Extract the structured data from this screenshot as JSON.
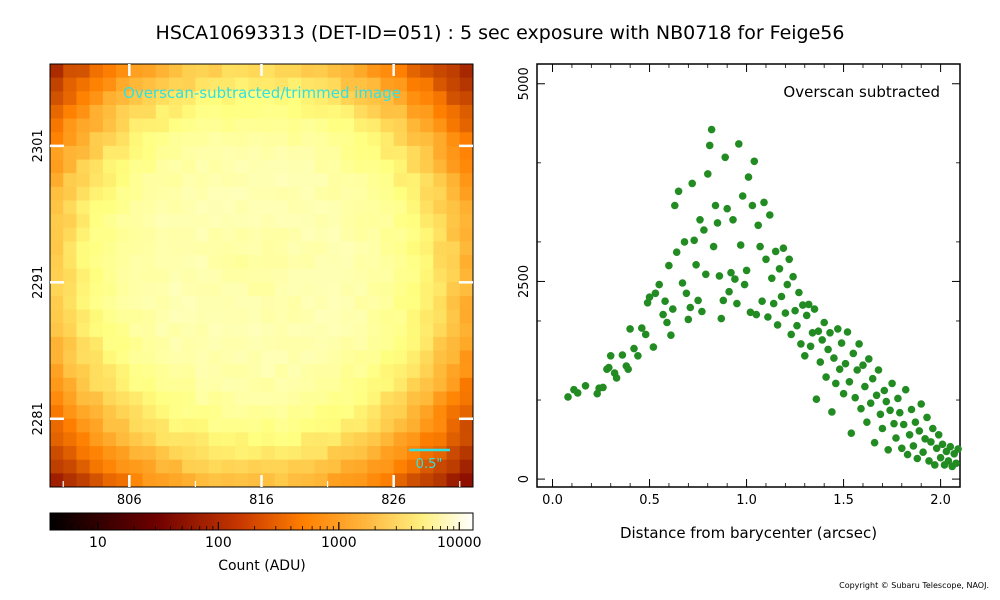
{
  "title": "HSCA10693313 (DET-ID=051) :  5 sec exposure with NB0718 for Feige56",
  "copyright": "Copyright © Subaru Telescope, NAOJ.",
  "colors": {
    "scatter_points": "#228B22",
    "image_overlay_text": "#33e0e0",
    "axes": "#000000"
  },
  "chart_data": [
    {
      "type": "heatmap",
      "title": "Overscan-subtracted/trimmed image",
      "colormap": "afmhot",
      "color_scale": "log",
      "x_ticks": [
        "806",
        "816",
        "826"
      ],
      "y_ticks": [
        "2301",
        "2291",
        "2281"
      ],
      "scalebar_label": "0.5\"",
      "x_range": [
        800,
        832
      ],
      "y_range": [
        2276,
        2307
      ],
      "source": {
        "x": 815.5,
        "y": 2292,
        "peak_counts": 4400,
        "ring_radius_px": 7,
        "sky_counts": 8
      },
      "colorbar": {
        "label": "Count (ADU)",
        "scale": "log",
        "range": [
          4,
          13000
        ],
        "ticks": [
          "10",
          "100",
          "1000",
          "10000"
        ]
      }
    },
    {
      "type": "scatter",
      "annotation": "Overscan subtracted",
      "xlabel": "Distance from barycenter (arcsec)",
      "ylabel": "",
      "xlim": [
        -0.08,
        2.1
      ],
      "ylim": [
        -100,
        5250
      ],
      "x_ticks": [
        "0.0",
        "0.5",
        "1.0",
        "1.5",
        "2.0"
      ],
      "y_ticks": [
        "0",
        "2500",
        "5000"
      ],
      "points": [
        [
          0.08,
          1040
        ],
        [
          0.11,
          1130
        ],
        [
          0.13,
          1090
        ],
        [
          0.17,
          1180
        ],
        [
          0.23,
          1080
        ],
        [
          0.24,
          1150
        ],
        [
          0.26,
          1160
        ],
        [
          0.28,
          1390
        ],
        [
          0.29,
          1410
        ],
        [
          0.3,
          1560
        ],
        [
          0.32,
          1340
        ],
        [
          0.33,
          1280
        ],
        [
          0.36,
          1570
        ],
        [
          0.38,
          1430
        ],
        [
          0.39,
          1390
        ],
        [
          0.4,
          1900
        ],
        [
          0.42,
          1650
        ],
        [
          0.44,
          1560
        ],
        [
          0.46,
          1910
        ],
        [
          0.48,
          1830
        ],
        [
          0.49,
          2230
        ],
        [
          0.5,
          2300
        ],
        [
          0.52,
          1670
        ],
        [
          0.53,
          2350
        ],
        [
          0.55,
          2460
        ],
        [
          0.57,
          2080
        ],
        [
          0.58,
          2250
        ],
        [
          0.59,
          1980
        ],
        [
          0.6,
          2700
        ],
        [
          0.61,
          1820
        ],
        [
          0.62,
          2150
        ],
        [
          0.63,
          3460
        ],
        [
          0.64,
          2870
        ],
        [
          0.65,
          3640
        ],
        [
          0.67,
          2480
        ],
        [
          0.68,
          3000
        ],
        [
          0.69,
          2350
        ],
        [
          0.7,
          2020
        ],
        [
          0.71,
          2170
        ],
        [
          0.72,
          3740
        ],
        [
          0.73,
          3020
        ],
        [
          0.74,
          2710
        ],
        [
          0.75,
          2260
        ],
        [
          0.76,
          3280
        ],
        [
          0.77,
          2120
        ],
        [
          0.78,
          3150
        ],
        [
          0.79,
          2590
        ],
        [
          0.8,
          3860
        ],
        [
          0.81,
          4220
        ],
        [
          0.82,
          4420
        ],
        [
          0.83,
          2940
        ],
        [
          0.84,
          3460
        ],
        [
          0.85,
          3240
        ],
        [
          0.86,
          2570
        ],
        [
          0.87,
          2030
        ],
        [
          0.88,
          2260
        ],
        [
          0.89,
          4070
        ],
        [
          0.9,
          3420
        ],
        [
          0.91,
          2370
        ],
        [
          0.92,
          2610
        ],
        [
          0.93,
          3280
        ],
        [
          0.94,
          2530
        ],
        [
          0.95,
          2220
        ],
        [
          0.96,
          4240
        ],
        [
          0.97,
          2960
        ],
        [
          0.98,
          3580
        ],
        [
          0.99,
          2460
        ],
        [
          1.0,
          2640
        ],
        [
          1.01,
          3820
        ],
        [
          1.02,
          2110
        ],
        [
          1.03,
          3460
        ],
        [
          1.04,
          4020
        ],
        [
          1.05,
          2080
        ],
        [
          1.06,
          3210
        ],
        [
          1.07,
          2940
        ],
        [
          1.08,
          2250
        ],
        [
          1.09,
          3500
        ],
        [
          1.1,
          2780
        ],
        [
          1.11,
          2050
        ],
        [
          1.12,
          3340
        ],
        [
          1.13,
          2540
        ],
        [
          1.14,
          2220
        ],
        [
          1.15,
          2880
        ],
        [
          1.16,
          1950
        ],
        [
          1.17,
          2660
        ],
        [
          1.18,
          2310
        ],
        [
          1.19,
          2920
        ],
        [
          1.2,
          2100
        ],
        [
          1.21,
          2460
        ],
        [
          1.22,
          2780
        ],
        [
          1.23,
          1830
        ],
        [
          1.24,
          2560
        ],
        [
          1.25,
          2130
        ],
        [
          1.26,
          1940
        ],
        [
          1.27,
          2360
        ],
        [
          1.28,
          1710
        ],
        [
          1.29,
          2200
        ],
        [
          1.3,
          1560
        ],
        [
          1.31,
          2070
        ],
        [
          1.32,
          2210
        ],
        [
          1.33,
          1680
        ],
        [
          1.34,
          1850
        ],
        [
          1.35,
          2150
        ],
        [
          1.36,
          1010
        ],
        [
          1.37,
          1870
        ],
        [
          1.38,
          1480
        ],
        [
          1.39,
          1760
        ],
        [
          1.4,
          1980
        ],
        [
          1.41,
          1290
        ],
        [
          1.42,
          1640
        ],
        [
          1.43,
          1850
        ],
        [
          1.44,
          850
        ],
        [
          1.45,
          1530
        ],
        [
          1.46,
          1210
        ],
        [
          1.47,
          1900
        ],
        [
          1.48,
          1390
        ],
        [
          1.49,
          1720
        ],
        [
          1.5,
          1080
        ],
        [
          1.51,
          1460
        ],
        [
          1.52,
          1860
        ],
        [
          1.53,
          1230
        ],
        [
          1.54,
          580
        ],
        [
          1.55,
          1590
        ],
        [
          1.56,
          1030
        ],
        [
          1.57,
          1380
        ],
        [
          1.58,
          1710
        ],
        [
          1.59,
          890
        ],
        [
          1.6,
          1440
        ],
        [
          1.61,
          1170
        ],
        [
          1.62,
          720
        ],
        [
          1.63,
          1520
        ],
        [
          1.64,
          960
        ],
        [
          1.65,
          1270
        ],
        [
          1.66,
          460
        ],
        [
          1.67,
          1060
        ],
        [
          1.68,
          1380
        ],
        [
          1.69,
          820
        ],
        [
          1.7,
          640
        ],
        [
          1.71,
          1120
        ],
        [
          1.72,
          980
        ],
        [
          1.73,
          370
        ],
        [
          1.74,
          870
        ],
        [
          1.75,
          1210
        ],
        [
          1.76,
          700
        ],
        [
          1.77,
          520
        ],
        [
          1.78,
          1020
        ],
        [
          1.79,
          840
        ],
        [
          1.8,
          390
        ],
        [
          1.81,
          690
        ],
        [
          1.82,
          1130
        ],
        [
          1.83,
          310
        ],
        [
          1.84,
          560
        ],
        [
          1.85,
          880
        ],
        [
          1.86,
          420
        ],
        [
          1.87,
          720
        ],
        [
          1.88,
          260
        ],
        [
          1.89,
          610
        ],
        [
          1.9,
          950
        ],
        [
          1.91,
          340
        ],
        [
          1.92,
          510
        ],
        [
          1.93,
          780
        ],
        [
          1.94,
          230
        ],
        [
          1.95,
          470
        ],
        [
          1.96,
          640
        ],
        [
          1.97,
          180
        ],
        [
          1.98,
          390
        ],
        [
          1.99,
          560
        ],
        [
          2.0,
          270
        ],
        [
          2.01,
          440
        ],
        [
          2.02,
          180
        ],
        [
          2.03,
          350
        ],
        [
          2.04,
          230
        ],
        [
          2.05,
          410
        ],
        [
          2.06,
          160
        ],
        [
          2.07,
          320
        ],
        [
          2.08,
          200
        ],
        [
          2.09,
          380
        ]
      ]
    }
  ]
}
